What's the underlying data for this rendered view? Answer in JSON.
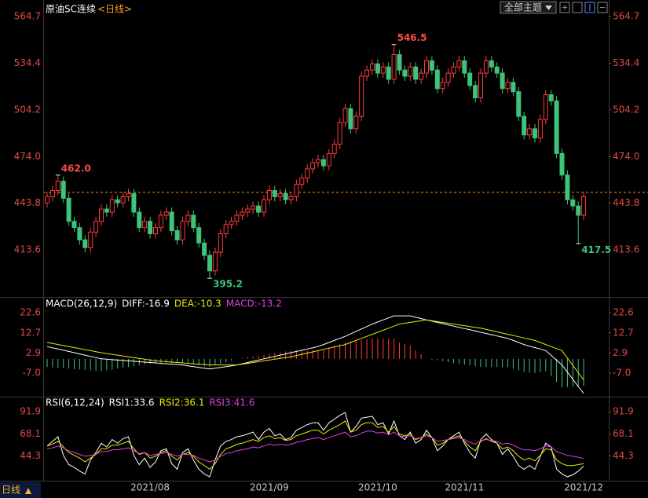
{
  "header": {
    "symbol": "原油SC连续",
    "period": "<日线>",
    "theme_button": "全部主题"
  },
  "footer": {
    "period": "日线"
  },
  "chart_data": [
    {
      "type": "candlestick",
      "title": "原油SC连续",
      "categories": [
        null,
        null,
        null,
        null,
        null,
        null,
        null,
        null,
        null,
        null,
        null,
        null,
        null,
        null,
        null,
        null,
        null,
        null,
        null,
        "2021/08",
        null,
        null,
        null,
        null,
        null,
        null,
        null,
        null,
        null,
        null,
        null,
        null,
        null,
        null,
        null,
        null,
        null,
        null,
        null,
        null,
        null,
        "2021/09",
        null,
        null,
        null,
        null,
        null,
        null,
        null,
        null,
        null,
        null,
        null,
        null,
        null,
        null,
        null,
        null,
        null,
        null,
        null,
        "2021/10",
        null,
        null,
        null,
        null,
        null,
        null,
        null,
        null,
        null,
        null,
        null,
        null,
        null,
        null,
        null,
        "2021/11",
        null,
        null,
        null,
        null,
        null,
        null,
        null,
        null,
        null,
        null,
        null,
        null,
        null,
        null,
        null,
        null,
        null,
        null,
        null,
        null,
        null,
        "2021/12"
      ],
      "open": [
        444,
        448,
        452,
        458,
        447,
        432,
        428,
        420,
        415,
        425,
        432,
        440,
        438,
        446,
        444,
        448,
        450,
        438,
        428,
        432,
        424,
        428,
        436,
        438,
        426,
        420,
        432,
        436,
        428,
        418,
        410,
        400,
        412,
        424,
        430,
        432,
        436,
        438,
        440,
        442,
        438,
        446,
        452,
        448,
        450,
        446,
        448,
        456,
        460,
        466,
        470,
        472,
        468,
        476,
        482,
        496,
        505,
        492,
        500,
        526,
        530,
        534,
        528,
        532,
        524,
        540,
        530,
        526,
        532,
        524,
        528,
        536,
        530,
        518,
        522,
        528,
        532,
        536,
        528,
        520,
        512,
        528,
        536,
        532,
        528,
        518,
        522,
        516,
        500,
        488,
        492,
        486,
        498,
        514,
        510,
        476,
        462,
        446,
        442,
        436
      ],
      "high": [
        451,
        455,
        462,
        461,
        450,
        435,
        431,
        423,
        428,
        435,
        443,
        443,
        449,
        449,
        451,
        453,
        453,
        441,
        435,
        435,
        431,
        439,
        441,
        441,
        429,
        435,
        439,
        439,
        431,
        421,
        413,
        415,
        427,
        433,
        435,
        439,
        441,
        443,
        445,
        445,
        449,
        455,
        455,
        453,
        453,
        451,
        459,
        463,
        469,
        473,
        475,
        475,
        479,
        485,
        499,
        508,
        508,
        503,
        529,
        533,
        537,
        537,
        535,
        535,
        546.5,
        543,
        533,
        535,
        535,
        531,
        539,
        539,
        533,
        525,
        531,
        535,
        539,
        539,
        531,
        523,
        531,
        539,
        539,
        535,
        531,
        525,
        525,
        519,
        503,
        495,
        495,
        501,
        517,
        517,
        513,
        479,
        465,
        449,
        445,
        451
      ],
      "low": [
        441,
        445,
        449,
        444,
        429,
        425,
        417,
        412,
        412,
        422,
        429,
        435,
        435,
        441,
        441,
        445,
        435,
        425,
        425,
        421,
        421,
        425,
        433,
        423,
        417,
        417,
        429,
        425,
        415,
        407,
        395.2,
        397,
        409,
        421,
        427,
        429,
        433,
        435,
        437,
        435,
        435,
        443,
        445,
        445,
        443,
        443,
        445,
        453,
        457,
        463,
        467,
        465,
        465,
        473,
        479,
        493,
        489,
        489,
        497,
        523,
        527,
        525,
        525,
        521,
        521,
        527,
        523,
        523,
        521,
        521,
        525,
        527,
        515,
        515,
        519,
        525,
        529,
        525,
        517,
        509,
        509,
        525,
        529,
        525,
        515,
        515,
        513,
        497,
        485,
        485,
        483,
        483,
        495,
        507,
        473,
        459,
        443,
        439,
        417.5,
        433
      ],
      "close": [
        448,
        452,
        458,
        447,
        432,
        428,
        420,
        415,
        425,
        432,
        440,
        438,
        446,
        444,
        448,
        450,
        438,
        428,
        432,
        424,
        428,
        436,
        438,
        426,
        420,
        432,
        436,
        428,
        418,
        410,
        400,
        412,
        424,
        430,
        432,
        436,
        438,
        440,
        442,
        438,
        446,
        452,
        448,
        450,
        446,
        448,
        456,
        460,
        466,
        470,
        472,
        468,
        476,
        482,
        496,
        505,
        492,
        500,
        526,
        530,
        534,
        528,
        532,
        524,
        540,
        530,
        526,
        532,
        524,
        528,
        536,
        530,
        518,
        522,
        528,
        532,
        536,
        528,
        520,
        512,
        528,
        536,
        532,
        528,
        518,
        522,
        516,
        500,
        488,
        492,
        486,
        498,
        514,
        510,
        476,
        462,
        446,
        442,
        436,
        448
      ],
      "up_color": "#ff3b3b",
      "down_color": "#3ec47a",
      "high_labels": [
        {
          "value": 546.5,
          "label": "546.5"
        },
        {
          "value": 462,
          "label": "462.0"
        }
      ],
      "low_labels": [
        {
          "value": 395.2,
          "label": "395.2"
        },
        {
          "value": 417.5,
          "label": "417.5"
        }
      ],
      "reference_line": {
        "value": 450.8,
        "color": "#ff8c1a"
      },
      "ylim": [
        383.1,
        572.8
      ],
      "yticks": [
        564.7,
        534.4,
        504.2,
        {
          "value": 474,
          "label": "474.0"
        },
        443.8,
        413.6
      ]
    },
    {
      "type": "macd",
      "title": "MACD(26,12,9)",
      "series": [
        {
          "label": "DIFF:-16.9",
          "color": "#ffffff",
          "values": [
            6,
            5.4,
            4.8,
            4.2,
            3.6,
            3,
            2.4,
            1.8,
            1.2,
            0.6,
            0,
            -0.2,
            -0.4,
            -0.6,
            -0.8,
            -1,
            -1.2,
            -1.4,
            -1.6,
            -1.8,
            -2,
            -2.2,
            -2.4,
            -2.6,
            -2.8,
            -3,
            -3.4,
            -3.8,
            -4.2,
            -4.6,
            -5,
            -4.6,
            -4.2,
            -3.8,
            -3.4,
            -3,
            -2.4,
            -1.8,
            -1.2,
            -0.6,
            0,
            0.6,
            1.2,
            1.8,
            2.4,
            3,
            3.6,
            4.2,
            4.8,
            5.4,
            6,
            7,
            8,
            9,
            10,
            11,
            12.2,
            13.4,
            14.6,
            15.8,
            17,
            18,
            19,
            20,
            21,
            21,
            21,
            21,
            20.3,
            19.7,
            19,
            18.4,
            17.8,
            17.2,
            16.6,
            16,
            15.4,
            14.8,
            14.2,
            13.6,
            13,
            12.4,
            11.8,
            11.2,
            10.6,
            10,
            9,
            8,
            7,
            6.2,
            5.5,
            4.8,
            4,
            1.7,
            -0.7,
            -3,
            -6.5,
            -10,
            -13.5,
            -16.9
          ]
        },
        {
          "label": "DEA:-10.3",
          "color": "#e8e800",
          "values": [
            8,
            7.5,
            7,
            6.5,
            6,
            5.5,
            5,
            4.5,
            4,
            3.5,
            3,
            2.6,
            2.2,
            1.8,
            1.4,
            1,
            0.6,
            0.2,
            -0.2,
            -0.6,
            -1,
            -1.2,
            -1.4,
            -1.6,
            -1.8,
            -2,
            -2.2,
            -2.4,
            -2.6,
            -2.8,
            -3,
            -3,
            -3,
            -3,
            -3,
            -3,
            -2.6,
            -2.2,
            -1.8,
            -1.4,
            -1,
            -0.6,
            -0.2,
            0.2,
            0.6,
            1,
            1.6,
            2.2,
            2.8,
            3.4,
            4,
            4.6,
            5.2,
            5.8,
            6.4,
            7,
            8,
            9,
            10,
            11,
            12,
            13,
            14,
            15,
            16,
            17,
            17.4,
            17.8,
            18.2,
            18.6,
            19,
            18.6,
            18.2,
            17.8,
            17.4,
            17,
            16.6,
            16.2,
            15.8,
            15.4,
            15,
            14.4,
            13.8,
            13.2,
            12.6,
            12,
            11.4,
            10.8,
            10.2,
            9.6,
            9,
            8,
            7,
            6,
            5,
            4,
            0.4,
            -3.2,
            -6.8,
            -10.3
          ]
        }
      ],
      "histogram": {
        "label": "MACD:-13.2",
        "color": "#e040e0",
        "up_color": "#ff3b3b",
        "down_color": "#3ec47a",
        "values": [
          -4,
          -4.2,
          -4.4,
          -4.6,
          -4.8,
          -5,
          -5.2,
          -5.4,
          -5.6,
          -5.8,
          -6,
          -5.6,
          -5.2,
          -4.8,
          -4.4,
          -4,
          -3.6,
          -3.2,
          -2.8,
          -2.4,
          -2,
          -2,
          -2,
          -2,
          -2,
          -2,
          -2.4,
          -2.8,
          -3.2,
          -3.6,
          -4,
          -3.2,
          -2.4,
          -1.6,
          -0.8,
          0,
          0.4,
          0.8,
          1.2,
          1.6,
          2,
          2.4,
          2.8,
          3.2,
          3.6,
          4,
          4,
          4,
          4,
          4,
          4,
          4.8,
          5.6,
          6.4,
          7.2,
          8,
          8.4,
          8.8,
          9.2,
          9.6,
          10,
          10,
          10,
          10,
          10,
          8,
          7.2,
          6.4,
          4.2,
          2.2,
          0,
          -0.4,
          -0.8,
          -1.2,
          -1.6,
          -2,
          -2.4,
          -2.8,
          -3.2,
          -3.6,
          -4,
          -4,
          -4,
          -4,
          -4,
          -4,
          -4.8,
          -5.6,
          -6.4,
          -6.8,
          -7,
          -6.4,
          -6,
          -8.6,
          -11.4,
          -14,
          -13.8,
          -13.6,
          -13.4,
          -13.2
        ]
      },
      "ylim": [
        -18.5,
        29.5
      ],
      "yticks": [
        22.6,
        12.7,
        2.9,
        {
          "value": -7,
          "label": "-7.0"
        }
      ]
    },
    {
      "type": "line",
      "title": "RSI(6,12,24)",
      "series": [
        {
          "label": "RSI1:33.6",
          "color": "#ffffff",
          "values": [
            55,
            60,
            65,
            45,
            35,
            32,
            28,
            25,
            40,
            48,
            58,
            54,
            62,
            58,
            63,
            65,
            45,
            35,
            42,
            32,
            38,
            50,
            52,
            36,
            30,
            48,
            52,
            40,
            30,
            25,
            22,
            40,
            55,
            60,
            62,
            65,
            66,
            68,
            70,
            62,
            70,
            74,
            66,
            68,
            62,
            64,
            72,
            75,
            78,
            80,
            80,
            72,
            80,
            84,
            88,
            91,
            70,
            76,
            85,
            86,
            87,
            78,
            80,
            68,
            82,
            66,
            62,
            70,
            58,
            62,
            72,
            64,
            50,
            55,
            62,
            66,
            70,
            58,
            48,
            42,
            62,
            68,
            62,
            58,
            46,
            52,
            44,
            34,
            30,
            34,
            30,
            44,
            58,
            54,
            30,
            25,
            22,
            24,
            28,
            33.6
          ]
        },
        {
          "label": "RSI2:36.1",
          "color": "#e8e800",
          "values": [
            55,
            57,
            60,
            54,
            48,
            45,
            42,
            38,
            42,
            46,
            52,
            52,
            56,
            56,
            58,
            60,
            52,
            46,
            48,
            42,
            44,
            48,
            50,
            44,
            40,
            46,
            48,
            44,
            38,
            34,
            30,
            36,
            46,
            52,
            54,
            57,
            58,
            60,
            62,
            60,
            64,
            66,
            63,
            64,
            61,
            62,
            66,
            68,
            70,
            72,
            72,
            68,
            72,
            75,
            78,
            82,
            70,
            72,
            78,
            80,
            80,
            75,
            76,
            70,
            76,
            68,
            66,
            68,
            62,
            64,
            68,
            64,
            56,
            58,
            62,
            64,
            66,
            60,
            54,
            50,
            60,
            63,
            60,
            58,
            52,
            54,
            50,
            44,
            40,
            42,
            39,
            45,
            52,
            51,
            40,
            36,
            34,
            34,
            35,
            36.1
          ]
        },
        {
          "label": "RSI3:41.6",
          "color": "#e040e0",
          "values": [
            52,
            53,
            55,
            53,
            50,
            48,
            46,
            44,
            45,
            46,
            49,
            49,
            51,
            51,
            52,
            53,
            50,
            47,
            48,
            45,
            46,
            47,
            48,
            46,
            44,
            46,
            46,
            45,
            42,
            40,
            38,
            40,
            44,
            47,
            48,
            50,
            51,
            52,
            54,
            53,
            55,
            57,
            56,
            57,
            56,
            57,
            59,
            60,
            62,
            63,
            64,
            62,
            64,
            66,
            68,
            70,
            65,
            66,
            69,
            71,
            71,
            69,
            70,
            67,
            70,
            66,
            65,
            66,
            63,
            64,
            66,
            64,
            60,
            61,
            62,
            63,
            64,
            62,
            59,
            57,
            61,
            62,
            61,
            60,
            57,
            58,
            56,
            53,
            51,
            51,
            50,
            52,
            55,
            54,
            49,
            47,
            45,
            44,
            43,
            41.6
          ]
        }
      ],
      "ylim": [
        17.7,
        106.4
      ],
      "yticks": [
        91.9,
        68.1,
        44.3
      ]
    }
  ]
}
